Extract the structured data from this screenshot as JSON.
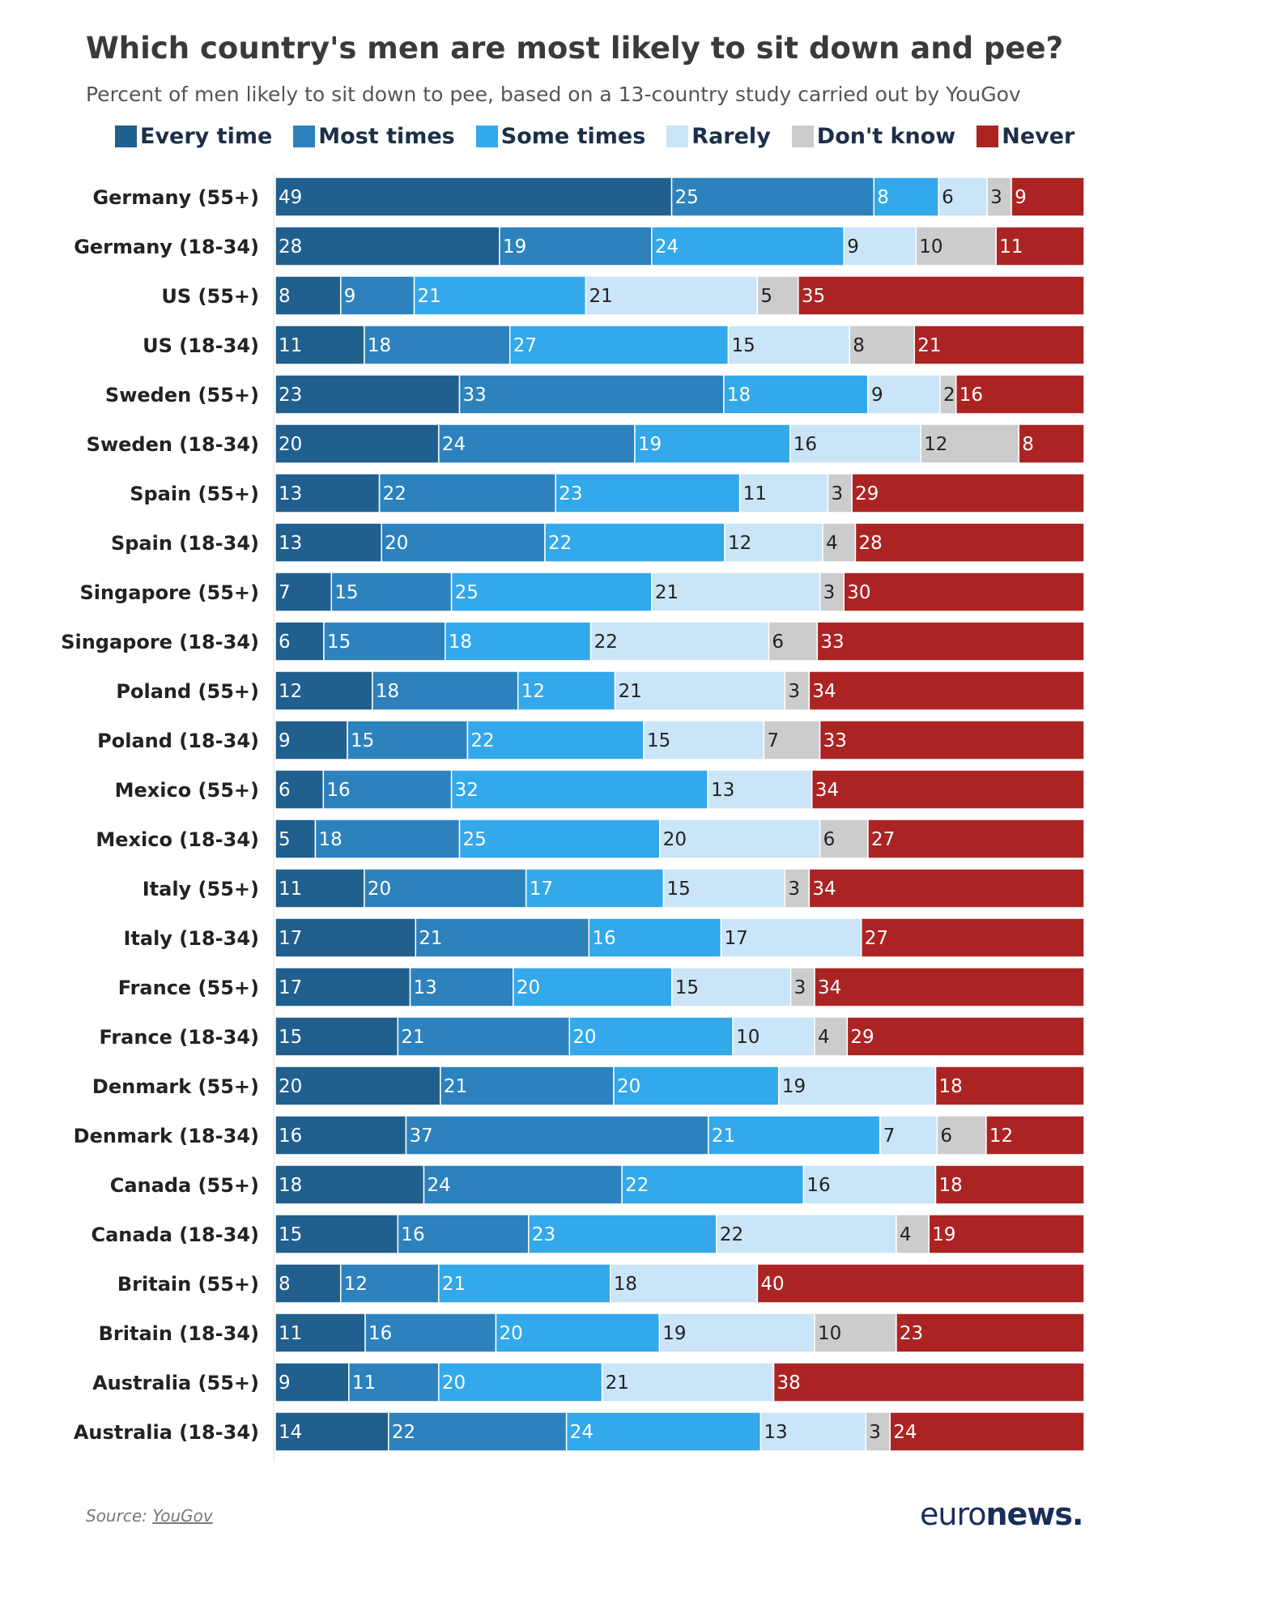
{
  "title": "Which country's men are most likely to sit down and pee?",
  "subtitle": "Percent of men likely to sit down to pee, based on a 13-country study carried out by YouGov",
  "source": {
    "prefix": "Source: ",
    "link_text": "YouGov"
  },
  "logo": {
    "part1": "euro",
    "part2": "news."
  },
  "chart_data": {
    "type": "bar",
    "orientation": "horizontal",
    "stacked": true,
    "xlim": [
      0,
      100
    ],
    "legend_position": "top",
    "grid": false,
    "categories": [
      "Germany (55+)",
      "Germany (18-34)",
      "US (55+)",
      "US (18-34)",
      "Sweden (55+)",
      "Sweden (18-34)",
      "Spain (55+)",
      "Spain (18-34)",
      "Singapore (55+)",
      "Singapore (18-34)",
      "Poland (55+)",
      "Poland (18-34)",
      "Mexico (55+)",
      "Mexico (18-34)",
      "Italy (55+)",
      "Italy (18-34)",
      "France (55+)",
      "France (18-34)",
      "Denmark (55+)",
      "Denmark (18-34)",
      "Canada (55+)",
      "Canada (18-34)",
      "Britain (55+)",
      "Britain (18-34)",
      "Australia (55+)",
      "Australia (18-34)"
    ],
    "series": [
      {
        "name": "Every time",
        "color": "#215f8f",
        "label_color": "#ffffff",
        "values": [
          49,
          28,
          8,
          11,
          23,
          20,
          13,
          13,
          7,
          6,
          12,
          9,
          6,
          5,
          11,
          17,
          17,
          15,
          20,
          16,
          18,
          15,
          8,
          11,
          9,
          14
        ]
      },
      {
        "name": "Most times",
        "color": "#2d82bd",
        "label_color": "#ffffff",
        "values": [
          25,
          19,
          9,
          18,
          33,
          24,
          22,
          20,
          15,
          15,
          18,
          15,
          16,
          18,
          20,
          21,
          13,
          21,
          21,
          37,
          24,
          16,
          12,
          16,
          11,
          22
        ]
      },
      {
        "name": "Some times",
        "color": "#33a8ea",
        "label_color": "#ffffff",
        "values": [
          8,
          24,
          21,
          27,
          18,
          19,
          23,
          22,
          25,
          18,
          12,
          22,
          32,
          25,
          17,
          16,
          20,
          20,
          20,
          21,
          22,
          23,
          21,
          20,
          20,
          24
        ]
      },
      {
        "name": "Rarely",
        "color": "#cae4f8",
        "label_color": "#222222",
        "values": [
          6,
          9,
          21,
          15,
          9,
          16,
          11,
          12,
          21,
          22,
          21,
          15,
          13,
          20,
          15,
          17,
          15,
          10,
          19,
          7,
          16,
          22,
          18,
          19,
          21,
          13
        ]
      },
      {
        "name": "Don't know",
        "color": "#cccccc",
        "label_color": "#222222",
        "values": [
          3,
          10,
          5,
          8,
          2,
          12,
          3,
          4,
          3,
          6,
          3,
          7,
          null,
          6,
          3,
          null,
          3,
          4,
          null,
          6,
          null,
          4,
          null,
          10,
          null,
          3
        ]
      },
      {
        "name": "Never",
        "color": "#ab2423",
        "label_color": "#ffffff",
        "values": [
          9,
          11,
          35,
          21,
          16,
          8,
          29,
          28,
          30,
          33,
          34,
          33,
          34,
          27,
          34,
          27,
          34,
          29,
          18,
          12,
          18,
          19,
          40,
          23,
          38,
          24
        ]
      }
    ]
  }
}
